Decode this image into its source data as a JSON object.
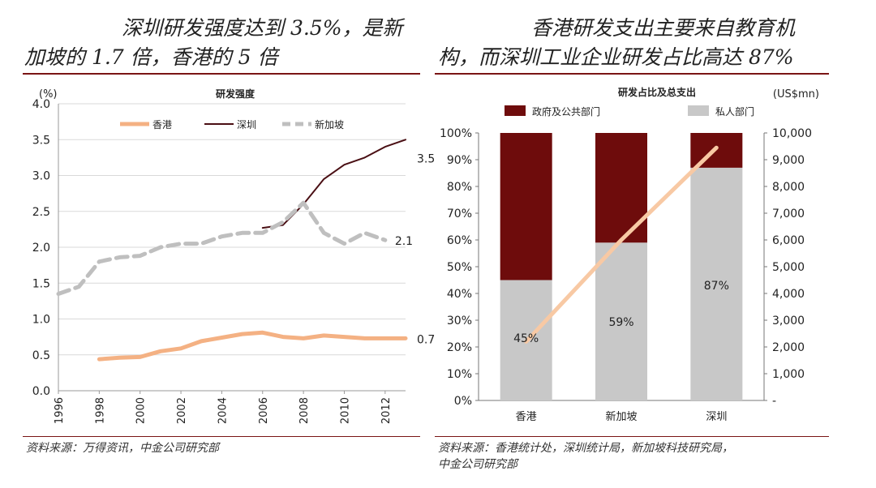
{
  "left": {
    "heading_line1": "深圳研发强度达到 3.5%，是新",
    "heading_line2": "加坡的 1.7 倍，香港的 5 倍",
    "source": "资料来源：万得资讯，中金公司研究部"
  },
  "right": {
    "heading_line1": "香港研发支出主要来自教育机",
    "heading_line2": "构，而深圳工业企业研发占比高达 87%",
    "source_line1": "资料来源：香港统计处，深圳统计局，新加坡科技研究局，",
    "source_line2": "中金公司研究部"
  },
  "colors": {
    "hk_line": "#f4b183",
    "sz_line": "#4a0f14",
    "sg_line": "#bfbfbf",
    "gov_bar": "#6e0c0c",
    "private_bar": "#c8c8c8",
    "total_line": "#f8c9a4",
    "rule": "#7a1515"
  },
  "chart_data": [
    {
      "type": "line",
      "title": "研发强度",
      "yunit": "(%)",
      "ylim": [
        0,
        4.0
      ],
      "yticks": [
        "0.0",
        "0.5",
        "1.0",
        "1.5",
        "2.0",
        "2.5",
        "3.0",
        "3.5",
        "4.0"
      ],
      "xlim": [
        1996,
        2013
      ],
      "xticks": [
        "1996",
        "1998",
        "2000",
        "2002",
        "2004",
        "2006",
        "2008",
        "2010",
        "2012"
      ],
      "grid": true,
      "legend_position": "top",
      "series": [
        {
          "name": "香港",
          "color": "#f4b183",
          "end_label": "0.7",
          "x": [
            1998,
            1999,
            2000,
            2001,
            2002,
            2003,
            2004,
            2005,
            2006,
            2007,
            2008,
            2009,
            2010,
            2011,
            2012,
            2013
          ],
          "y": [
            0.44,
            0.46,
            0.47,
            0.55,
            0.59,
            0.69,
            0.74,
            0.79,
            0.81,
            0.75,
            0.73,
            0.77,
            0.75,
            0.73,
            0.73,
            0.73
          ]
        },
        {
          "name": "深圳",
          "color": "#4a0f14",
          "end_label": "3.5",
          "x": [
            2006,
            2007,
            2008,
            2009,
            2010,
            2011,
            2012,
            2013
          ],
          "y": [
            2.27,
            2.31,
            2.6,
            2.95,
            3.15,
            3.25,
            3.4,
            3.5
          ]
        },
        {
          "name": "新加坡",
          "color": "#bfbfbf",
          "end_label": "2.1",
          "x": [
            1996,
            1997,
            1998,
            1999,
            2000,
            2001,
            2002,
            2003,
            2004,
            2005,
            2006,
            2007,
            2008,
            2009,
            2010,
            2011,
            2012
          ],
          "y": [
            1.35,
            1.45,
            1.8,
            1.86,
            1.88,
            2.0,
            2.05,
            2.05,
            2.15,
            2.2,
            2.2,
            2.35,
            2.62,
            2.2,
            2.05,
            2.2,
            2.1
          ]
        }
      ]
    },
    {
      "type": "bar",
      "stacked": true,
      "percent": true,
      "title": "研发占比及总支出",
      "y2unit": "(US$mn)",
      "categories": [
        "香港",
        "新加坡",
        "深圳"
      ],
      "ylim": [
        0,
        100
      ],
      "yticks": [
        "0%",
        "10%",
        "20%",
        "30%",
        "40%",
        "50%",
        "60%",
        "70%",
        "80%",
        "90%",
        "100%"
      ],
      "y2lim": [
        0,
        10000
      ],
      "y2ticks": [
        "-",
        "1,000",
        "2,000",
        "3,000",
        "4,000",
        "5,000",
        "6,000",
        "7,000",
        "8,000",
        "9,000",
        "10,000"
      ],
      "legend_position": "top",
      "series": [
        {
          "name": "私人部门",
          "color": "#c8c8c8",
          "values": [
            45,
            59,
            87
          ],
          "labels": [
            "45%",
            "59%",
            "87%"
          ]
        },
        {
          "name": "政府及公共部门",
          "color": "#6e0c0c",
          "values": [
            55,
            41,
            13
          ]
        }
      ],
      "line_series": {
        "axis": "right",
        "color": "#f8c9a4",
        "values": [
          2200,
          6000,
          9450
        ]
      }
    }
  ]
}
